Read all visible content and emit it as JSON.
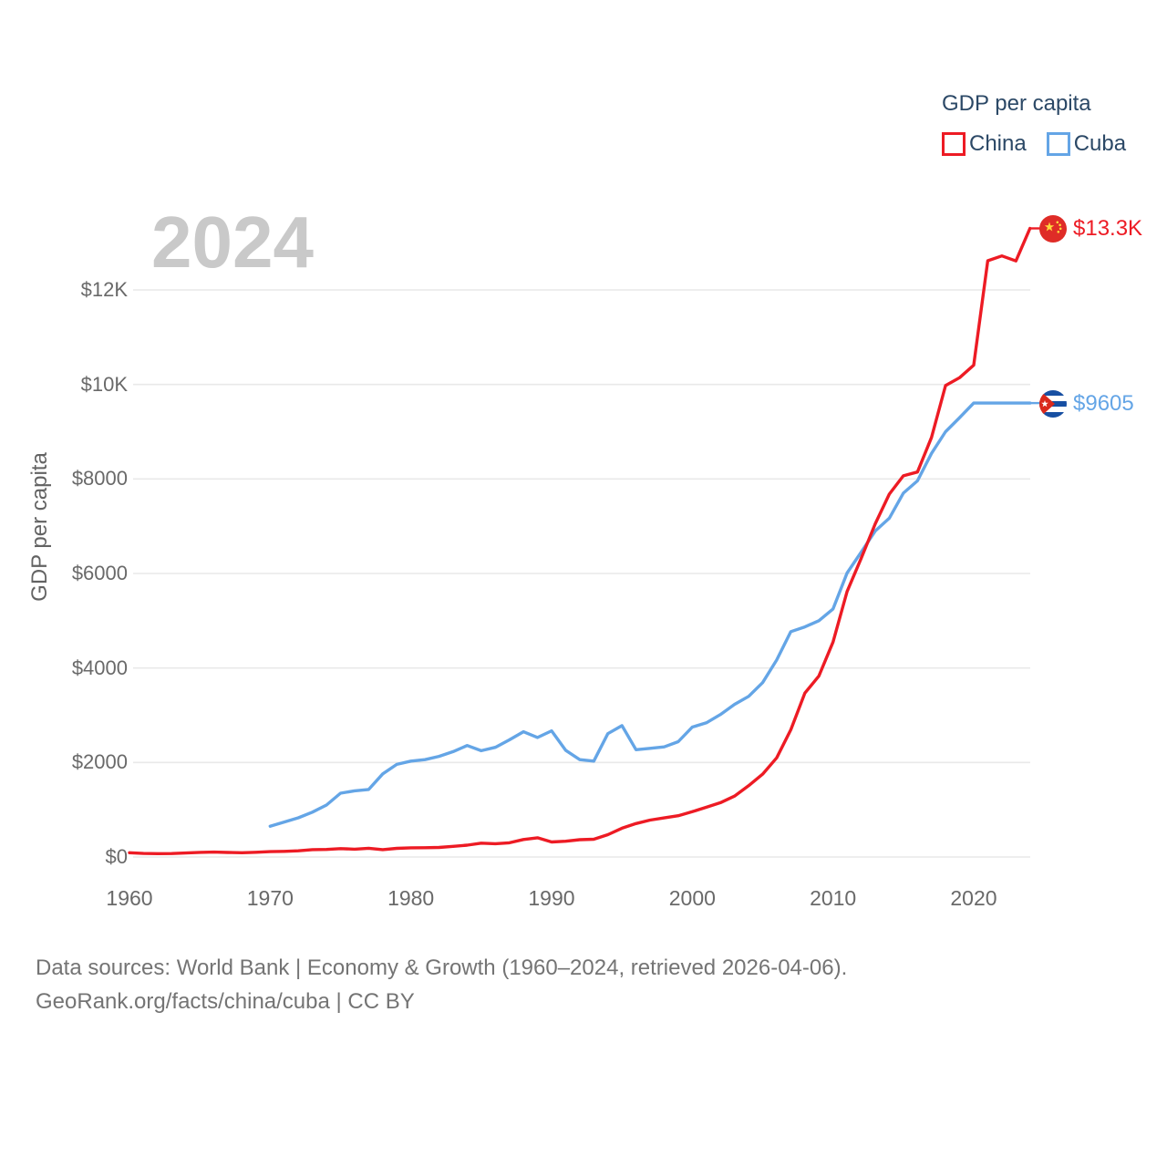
{
  "legend": {
    "title": "GDP per capita",
    "items": [
      {
        "label": "China",
        "color": "#ed1b24"
      },
      {
        "label": "Cuba",
        "color": "#64a5e6"
      }
    ]
  },
  "watermark": {
    "year": "2024"
  },
  "end_labels": {
    "china": {
      "text": "$13.3K",
      "flag": "china-flag"
    },
    "cuba": {
      "text": "$9605",
      "flag": "cuba-flag"
    }
  },
  "footer": {
    "line1": "Data sources: World Bank | Economy & Growth (1960–2024, retrieved 2026-04-06).",
    "line2": "GeoRank.org/facts/china/cuba | CC BY"
  },
  "colors": {
    "china": "#ed1b24",
    "cuba": "#64a5e6",
    "legend_text": "#2b4866",
    "axis_text": "#696969",
    "watermark": "#c9c9c9",
    "footer_text": "#747474",
    "grid": "#e9e9e9",
    "background": "#ffffff"
  },
  "chart_data": {
    "type": "line",
    "title": "GDP per capita",
    "ylabel": "GDP per capita",
    "xlim": [
      1960,
      2024
    ],
    "ylim": [
      0,
      13500
    ],
    "grid": "horizontal",
    "legend_position": "top-right",
    "x": [
      1960,
      1961,
      1962,
      1963,
      1964,
      1965,
      1966,
      1967,
      1968,
      1969,
      1970,
      1971,
      1972,
      1973,
      1974,
      1975,
      1976,
      1977,
      1978,
      1979,
      1980,
      1981,
      1982,
      1983,
      1984,
      1985,
      1986,
      1987,
      1988,
      1989,
      1990,
      1991,
      1992,
      1993,
      1994,
      1995,
      1996,
      1997,
      1998,
      1999,
      2000,
      2001,
      2002,
      2003,
      2004,
      2005,
      2006,
      2007,
      2008,
      2009,
      2010,
      2011,
      2012,
      2013,
      2014,
      2015,
      2016,
      2017,
      2018,
      2019,
      2020,
      2021,
      2022,
      2023,
      2024
    ],
    "series": [
      {
        "name": "China",
        "color": "#ed1b24",
        "values": [
          90,
          76,
          71,
          74,
          85,
          98,
          104,
          97,
          91,
          100,
          113,
          119,
          132,
          157,
          160,
          178,
          165,
          185,
          156,
          184,
          195,
          197,
          203,
          225,
          250,
          294,
          282,
          301,
          370,
          407,
          318,
          333,
          366,
          377,
          473,
          610,
          709,
          781,
          828,
          873,
          959,
          1053,
          1149,
          1289,
          1509,
          1753,
          2099,
          2694,
          3468,
          3832,
          4550,
          5618,
          6317,
          7051,
          7679,
          8067,
          8148,
          8879,
          9977,
          10144,
          10409,
          12618,
          12720,
          12614,
          13303
        ]
      },
      {
        "name": "Cuba",
        "color": "#64a5e6",
        "values": [
          null,
          null,
          null,
          null,
          null,
          null,
          null,
          null,
          null,
          null,
          653,
          740,
          830,
          950,
          1100,
          1350,
          1400,
          1430,
          1760,
          1960,
          2030,
          2060,
          2130,
          2230,
          2360,
          2250,
          2320,
          2480,
          2650,
          2530,
          2670,
          2260,
          2060,
          2030,
          2610,
          2780,
          2270,
          2300,
          2330,
          2440,
          2750,
          2840,
          3015,
          3230,
          3400,
          3690,
          4170,
          4770,
          4870,
          5000,
          5250,
          6010,
          6450,
          6900,
          7170,
          7700,
          7960,
          8540,
          9000,
          9300,
          9605,
          9605,
          9605,
          9605,
          9605
        ]
      }
    ],
    "y_ticks": {
      "values": [
        0,
        2000,
        4000,
        6000,
        8000,
        10000,
        12000
      ],
      "labels": [
        "$0",
        "$2000",
        "$4000",
        "$6000",
        "$8000",
        "$10K",
        "$12K"
      ]
    },
    "x_ticks": {
      "values": [
        1960,
        1970,
        1980,
        1990,
        2000,
        2010,
        2020
      ],
      "labels": [
        "1960",
        "1970",
        "1980",
        "1990",
        "2000",
        "2010",
        "2020"
      ]
    }
  }
}
